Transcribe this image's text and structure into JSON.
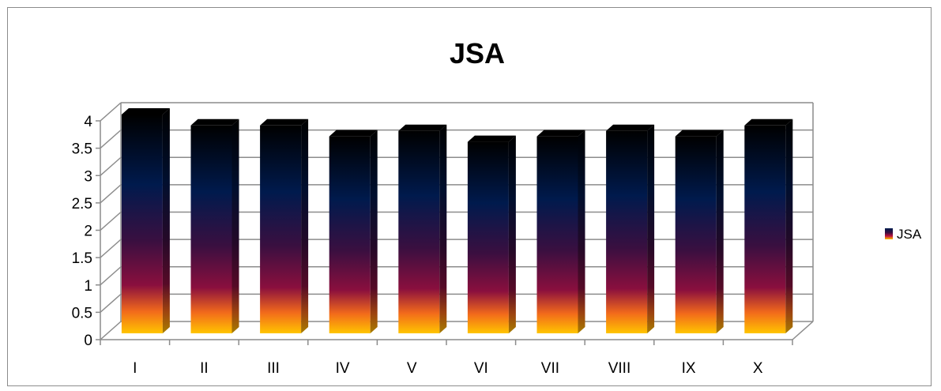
{
  "chart_data": {
    "type": "bar",
    "title": "JSA",
    "xlabel": "",
    "ylabel": "",
    "categories": [
      "I",
      "II",
      "III",
      "IV",
      "V",
      "VI",
      "VII",
      "VIII",
      "IX",
      "X"
    ],
    "series": [
      {
        "name": "JSA",
        "values": [
          4.0,
          3.8,
          3.8,
          3.6,
          3.7,
          3.5,
          3.6,
          3.7,
          3.6,
          3.8
        ]
      }
    ],
    "ylim": [
      0,
      4
    ],
    "yticks": [
      "0",
      "0.5",
      "1",
      "1.5",
      "2",
      "2.5",
      "3",
      "3.5",
      "4"
    ],
    "grid": true,
    "legend_position": "right",
    "colors": {
      "bar_top": "#000000",
      "bar_upper": "#001a4d",
      "bar_mid": "#3a0f40",
      "bar_lower": "#8a0f3e",
      "bar_orange": "#f26a1b",
      "bar_base": "#ffc400",
      "grid": "#8c8c8c"
    }
  }
}
